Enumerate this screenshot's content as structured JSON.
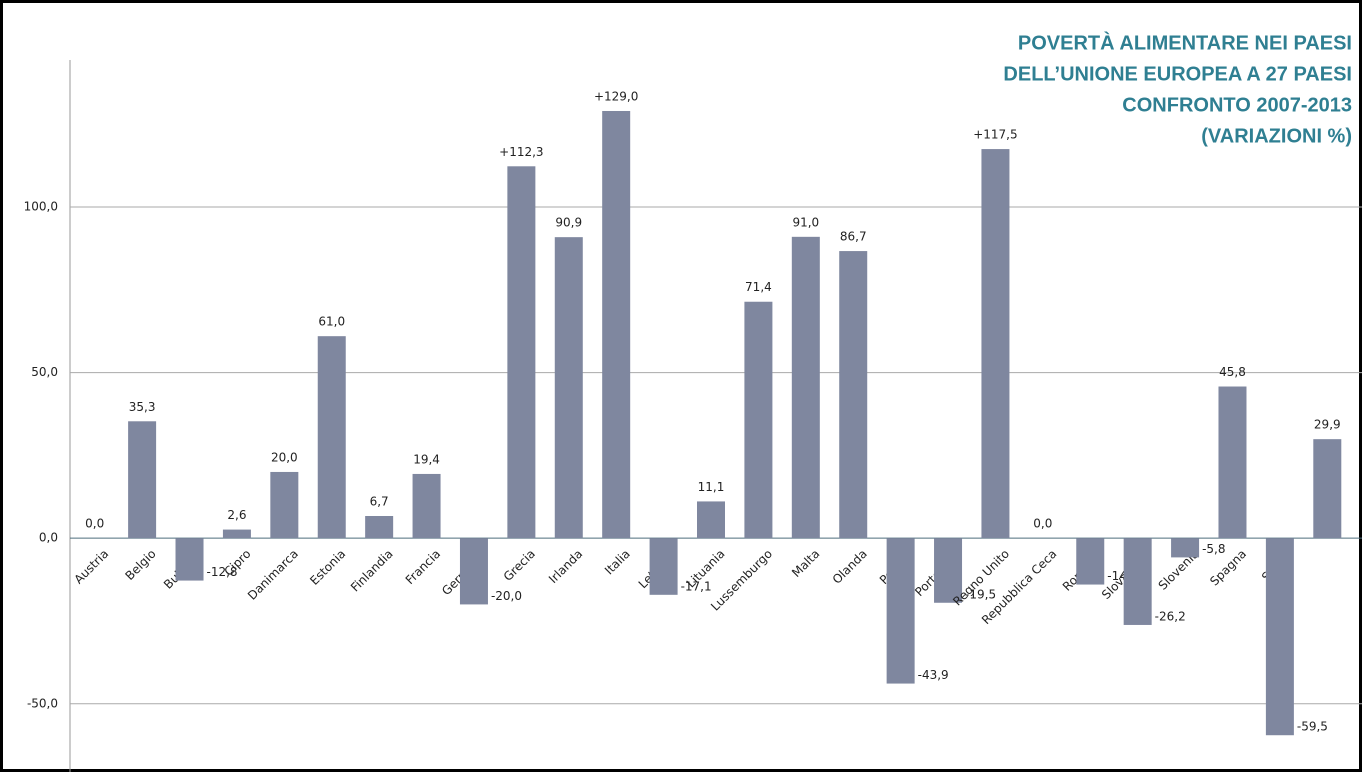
{
  "chart_data": {
    "type": "bar",
    "title": [
      "POVERTÀ ALIMENTARE NEI PAESI",
      "DELL’UNIONE EUROPEA A 27 PAESI",
      "CONFRONTO 2007-2013",
      "(VARIAZIONI %)"
    ],
    "categories": [
      "Austria",
      "Belgio",
      "Bulgaria",
      "Cipro",
      "Danimarca",
      "Estonia",
      "Finlandia",
      "Francia",
      "Germania",
      "Grecia",
      "Irlanda",
      "Italia",
      "Lettonia",
      "Lituania",
      "Lussemburgo",
      "Malta",
      "Olanda",
      "Polonia",
      "Portogallo",
      "Regno Unito",
      "Repubblica Ceca",
      "Romania",
      "Slovacchia",
      "Slovenia",
      "Spagna",
      "Svezia",
      null
    ],
    "values": [
      0,
      35.3,
      -12.8,
      2.6,
      20,
      61,
      6.7,
      19.4,
      -20,
      112.3,
      90.9,
      129,
      -17.1,
      11.1,
      71.4,
      91,
      86.7,
      -43.9,
      -19.5,
      117.5,
      0,
      -14,
      -26.2,
      -5.8,
      45.8,
      -59.5,
      29.9
    ],
    "value_labels": [
      "0,0",
      "35,3",
      "-12,8",
      "2,6",
      "20,0",
      "61,0",
      "6,7",
      "19,4",
      "-20,0",
      "+112,3",
      "90,9",
      "+129,0",
      "-17,1",
      "11,1",
      "71,4",
      "91,0",
      "86,7",
      "-43,9",
      "-19,5",
      "+117,5",
      "0,0",
      "-14,0",
      "-26,2",
      "-5,8",
      "45,8",
      "-59,5",
      "29,9"
    ],
    "color": "#7f879f",
    "ylim": [
      -70,
      145
    ],
    "yticks": [
      {
        "value": -50,
        "label": "-50,0"
      },
      {
        "value": 0,
        "label": "0,0"
      },
      {
        "value": 50,
        "label": "50,0"
      },
      {
        "value": 100,
        "label": "100,0"
      }
    ],
    "grid": true
  }
}
